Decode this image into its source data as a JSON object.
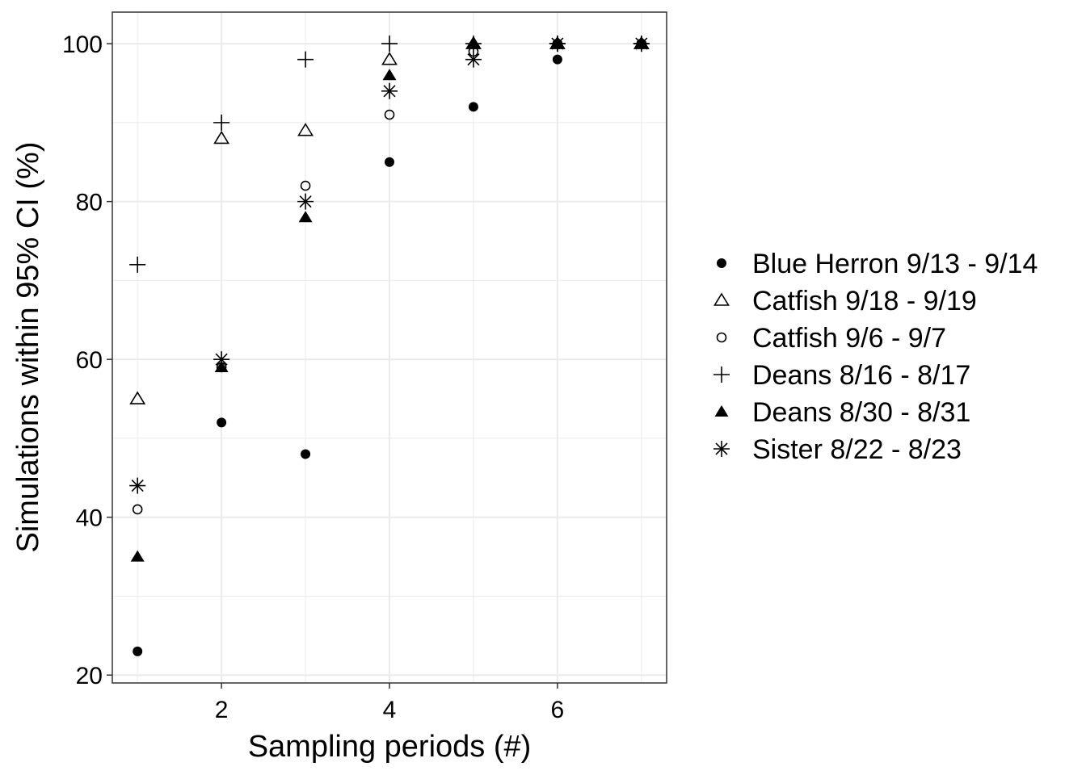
{
  "chart_data": {
    "type": "scatter",
    "title": "",
    "xlabel": "Sampling periods (#)",
    "ylabel": "Simulations within 95% CI (%)",
    "xlim": [
      0.7,
      7.3
    ],
    "ylim": [
      19,
      104
    ],
    "x_ticks": [
      2,
      4,
      6
    ],
    "y_ticks": [
      20,
      40,
      60,
      80,
      100
    ],
    "grid": true,
    "legend_position": "right",
    "series": [
      {
        "name": "Blue Herron 9/13 - 9/14",
        "shape": "filled-circle",
        "points": [
          [
            1,
            23
          ],
          [
            2,
            52
          ],
          [
            3,
            48
          ],
          [
            4,
            85
          ],
          [
            5,
            92
          ],
          [
            6,
            98
          ],
          [
            7,
            100
          ]
        ]
      },
      {
        "name": "Catfish 9/18 - 9/19",
        "shape": "open-triangle",
        "points": [
          [
            1,
            55
          ],
          [
            2,
            88
          ],
          [
            3,
            89
          ],
          [
            4,
            98
          ],
          [
            5,
            100
          ],
          [
            6,
            100
          ],
          [
            7,
            100
          ]
        ]
      },
      {
        "name": "Catfish 9/6 - 9/7",
        "shape": "open-circle",
        "points": [
          [
            1,
            41
          ],
          [
            2,
            59
          ],
          [
            3,
            82
          ],
          [
            4,
            91
          ],
          [
            5,
            99
          ],
          [
            6,
            100
          ],
          [
            7,
            100
          ]
        ]
      },
      {
        "name": "Deans 8/16 - 8/17",
        "shape": "plus",
        "points": [
          [
            1,
            72
          ],
          [
            2,
            90
          ],
          [
            3,
            98
          ],
          [
            4,
            100
          ],
          [
            5,
            100
          ],
          [
            6,
            100
          ],
          [
            7,
            100
          ]
        ]
      },
      {
        "name": "Deans 8/30 - 8/31",
        "shape": "filled-triangle",
        "points": [
          [
            1,
            35
          ],
          [
            2,
            59
          ],
          [
            3,
            78
          ],
          [
            4,
            96
          ],
          [
            5,
            100
          ],
          [
            6,
            100
          ],
          [
            7,
            100
          ]
        ]
      },
      {
        "name": "Sister 8/22 - 8/23",
        "shape": "asterisk",
        "points": [
          [
            1,
            44
          ],
          [
            2,
            60
          ],
          [
            3,
            80
          ],
          [
            4,
            94
          ],
          [
            5,
            98
          ],
          [
            6,
            100
          ],
          [
            7,
            100
          ]
        ]
      }
    ],
    "colors": {
      "marker": "#000000",
      "grid": "#ebebeb",
      "panel_border": "#333333",
      "background": "#ffffff"
    }
  }
}
